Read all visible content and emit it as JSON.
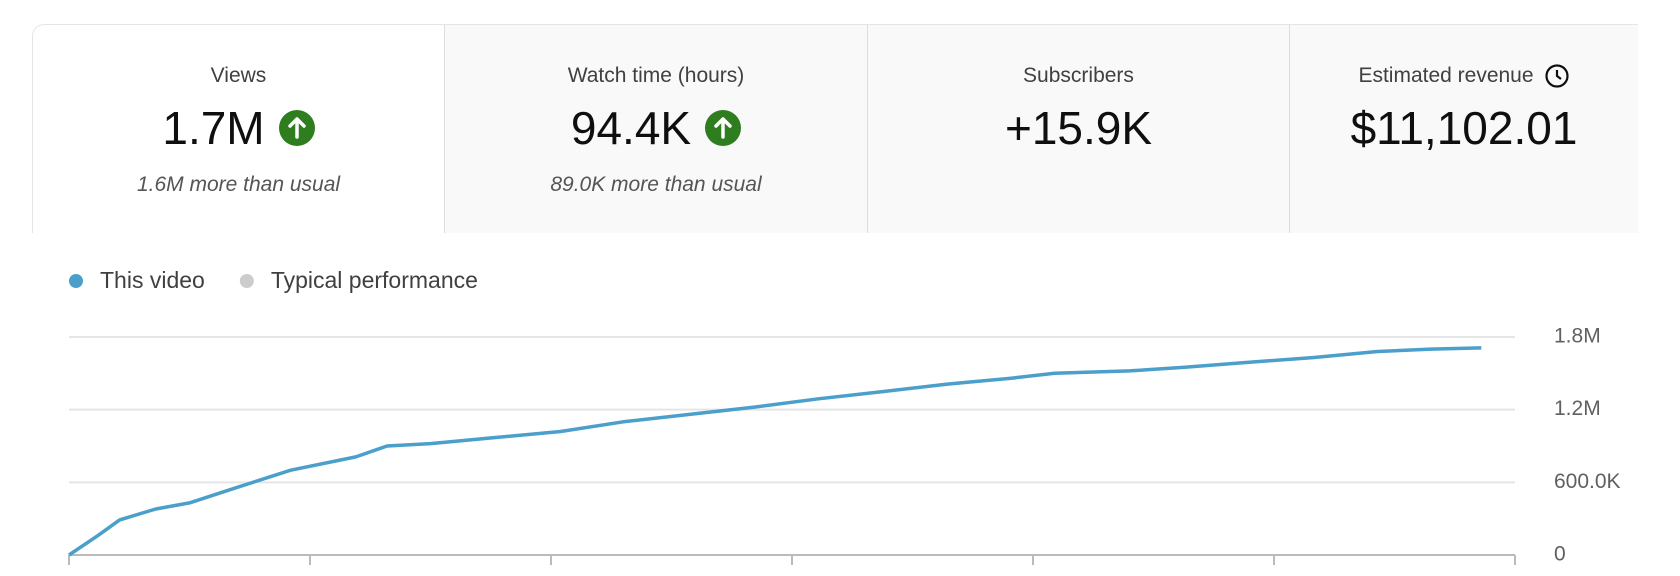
{
  "cards": [
    {
      "label": "Views",
      "value": "1.7M",
      "note": "1.6M more than usual",
      "trend": "up"
    },
    {
      "label": "Watch time (hours)",
      "value": "94.4K",
      "note": "89.0K more than usual",
      "trend": "up"
    },
    {
      "label": "Subscribers",
      "value": "+15.9K"
    },
    {
      "label": "Estimated revenue",
      "value": "$11,102.01"
    }
  ],
  "chart_data": {
    "type": "line",
    "x": [
      0,
      0.12,
      0.21,
      0.36,
      0.5,
      0.7,
      0.92,
      1.19,
      1.32,
      1.5,
      1.77,
      2.04,
      2.3,
      2.57,
      2.84,
      3.11,
      3.38,
      3.64,
      3.91,
      4.09,
      4.4,
      4.63,
      4.89,
      5.16,
      5.43,
      5.65,
      5.86
    ],
    "series": [
      {
        "name": "This video",
        "color": "#4a9fcb",
        "values": [
          0,
          160000,
          290000,
          380000,
          430000,
          560000,
          700000,
          810000,
          900000,
          920000,
          970000,
          1020000,
          1100000,
          1160000,
          1220000,
          1290000,
          1350000,
          1410000,
          1460000,
          1500000,
          1520000,
          1550000,
          1590000,
          1630000,
          1680000,
          1700000,
          1710000
        ]
      },
      {
        "name": "Typical performance",
        "color": "#cccccc",
        "values": [
          null,
          null,
          null,
          null,
          null,
          null,
          null,
          null,
          null,
          null,
          null,
          null,
          null,
          null,
          null,
          null,
          null,
          null,
          null,
          null,
          null,
          null,
          null,
          null,
          null,
          null,
          null
        ]
      }
    ],
    "xlim": [
      0,
      6
    ],
    "xticks": [
      0,
      1,
      2,
      3,
      4,
      5,
      6
    ],
    "ylim": [
      0,
      1800000
    ],
    "yticks": [
      0,
      {
        "value": 600000,
        "label": "600.0K"
      },
      {
        "value": 1200000,
        "label": "1.2M"
      },
      {
        "value": 1800000,
        "label": "1.8M"
      }
    ],
    "grid": true
  }
}
